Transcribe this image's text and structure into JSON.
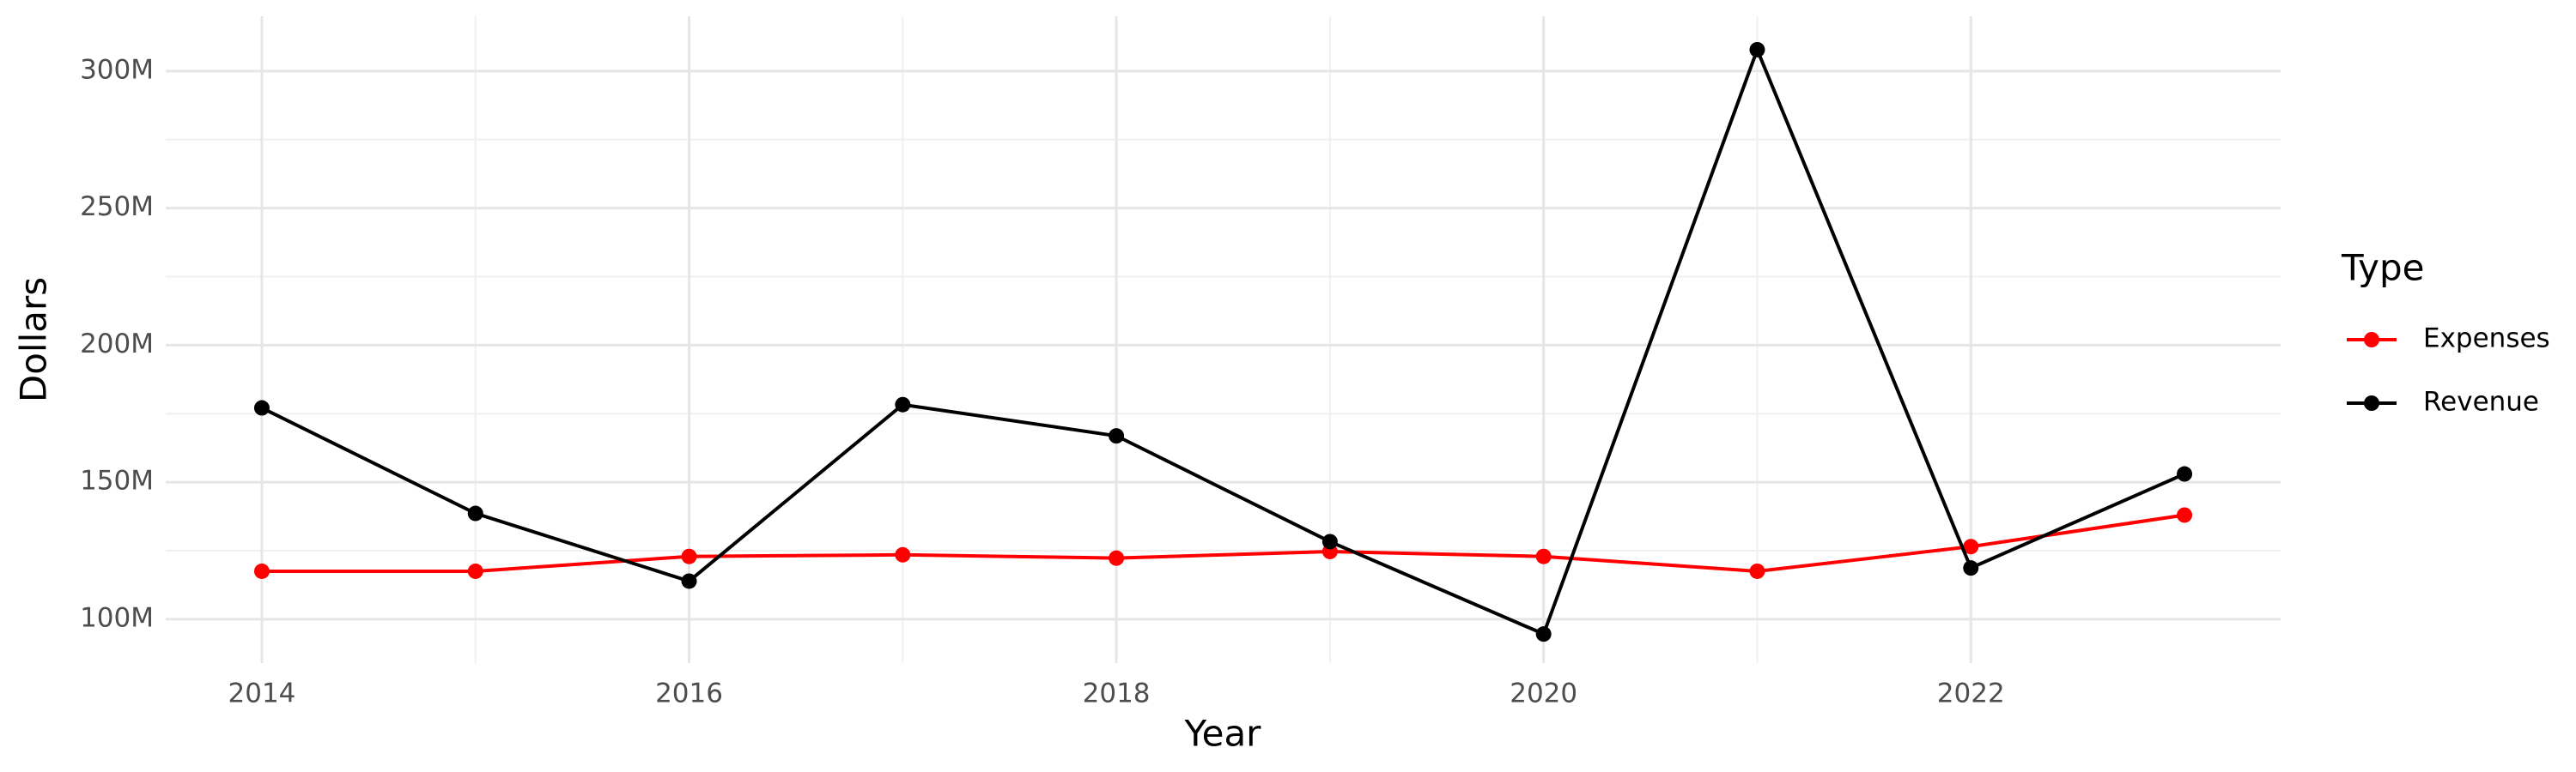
{
  "chart_data": {
    "type": "line",
    "x_label": "Year",
    "y_label": "Dollars",
    "legend_title": "Type",
    "legend": "right",
    "grid": true,
    "x": [
      2014,
      2015,
      2016,
      2017,
      2018,
      2019,
      2020,
      2021,
      2022,
      2023
    ],
    "series": [
      {
        "name": "Expenses",
        "color": "#ff0000",
        "values": [
          117500000,
          117500000,
          122900000,
          123500000,
          122300000,
          124700000,
          122900000,
          117500000,
          126500000,
          138000000
        ]
      },
      {
        "name": "Revenue",
        "color": "#000000",
        "values": [
          177100000,
          138600000,
          113900000,
          178300000,
          166900000,
          128300000,
          94600000,
          307800000,
          118700000,
          153000000
        ]
      }
    ],
    "xlim": [
      2013.55,
      2023.45
    ],
    "xticks": [
      2014,
      2016,
      2018,
      2020,
      2022
    ],
    "ylim": [
      84000000,
      320000000
    ],
    "yticks": [
      {
        "value": 100000000,
        "label": "100M"
      },
      {
        "value": 150000000,
        "label": "150M"
      },
      {
        "value": 200000000,
        "label": "200M"
      },
      {
        "value": 250000000,
        "label": "250M"
      },
      {
        "value": 300000000,
        "label": "300M"
      }
    ]
  }
}
